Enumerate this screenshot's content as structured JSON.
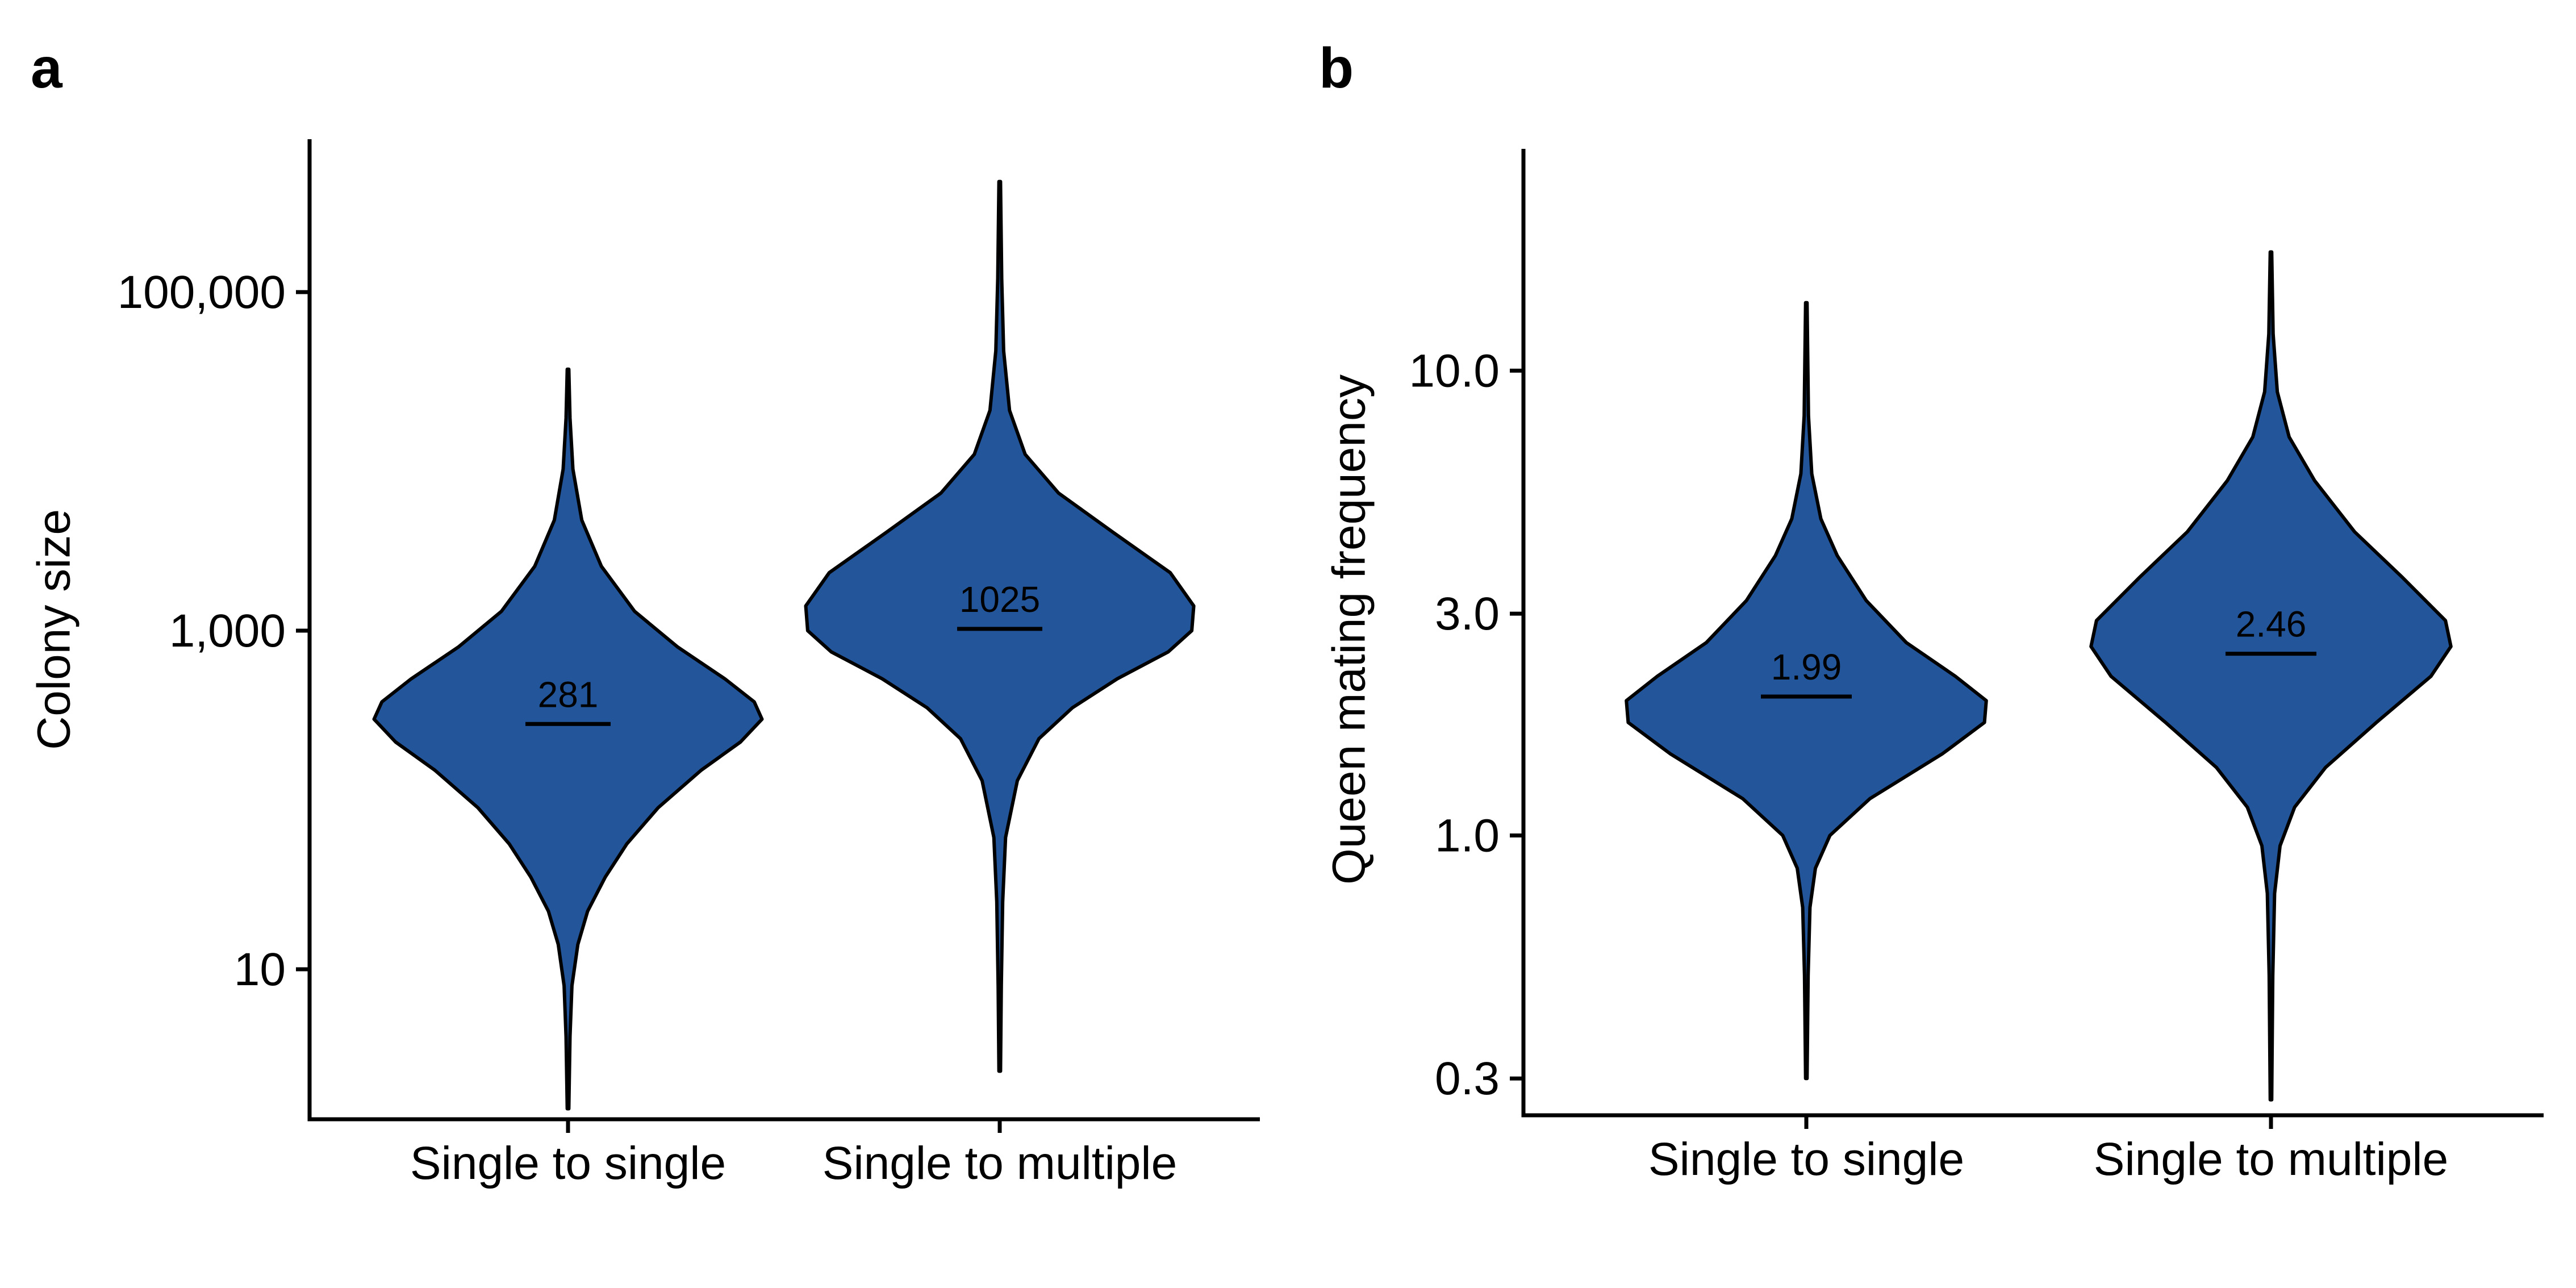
{
  "colors": {
    "violin_fill": "#225599",
    "outline": "#000000",
    "axis": "#000000"
  },
  "panels": [
    {
      "letter": "a"
    },
    {
      "letter": "b"
    }
  ],
  "chart_data": [
    {
      "type": "violin",
      "panel": "a",
      "title": "",
      "xlabel": "",
      "ylabel": "Colony size",
      "y_scale": "log10",
      "ylim": [
        1.3,
        800000
      ],
      "y_ticks": [
        10,
        1000,
        100000
      ],
      "y_tick_labels": [
        "10",
        "1,000",
        "100,000"
      ],
      "categories": [
        "Single to single",
        "Single to multiple"
      ],
      "medians": [
        281,
        1025
      ],
      "median_labels": [
        "281",
        "1025"
      ],
      "ranges": [
        [
          1.5,
          35000
        ],
        [
          2.5,
          450000
        ]
      ],
      "densities": [
        [
          [
            1.5,
            0.004
          ],
          [
            4,
            0.01
          ],
          [
            8,
            0.02
          ],
          [
            14,
            0.05
          ],
          [
            22,
            0.1
          ],
          [
            35,
            0.19
          ],
          [
            55,
            0.3
          ],
          [
            90,
            0.46
          ],
          [
            150,
            0.68
          ],
          [
            220,
            0.88
          ],
          [
            300,
            0.99
          ],
          [
            380,
            0.95
          ],
          [
            520,
            0.8
          ],
          [
            800,
            0.56
          ],
          [
            1300,
            0.34
          ],
          [
            2400,
            0.17
          ],
          [
            4500,
            0.07
          ],
          [
            9000,
            0.025
          ],
          [
            18000,
            0.01
          ],
          [
            35000,
            0.004
          ]
        ],
        [
          [
            2.5,
            0.004
          ],
          [
            8,
            0.008
          ],
          [
            25,
            0.015
          ],
          [
            60,
            0.03
          ],
          [
            130,
            0.09
          ],
          [
            230,
            0.2
          ],
          [
            350,
            0.37
          ],
          [
            520,
            0.6
          ],
          [
            750,
            0.86
          ],
          [
            1000,
            0.98
          ],
          [
            1400,
            0.99
          ],
          [
            2200,
            0.87
          ],
          [
            3800,
            0.58
          ],
          [
            6500,
            0.3
          ],
          [
            11000,
            0.13
          ],
          [
            20000,
            0.05
          ],
          [
            45000,
            0.02
          ],
          [
            120000,
            0.01
          ],
          [
            450000,
            0.004
          ]
        ]
      ]
    },
    {
      "type": "violin",
      "panel": "b",
      "title": "",
      "xlabel": "",
      "ylabel": "Queen mating frequency",
      "y_scale": "log10",
      "ylim": [
        0.25,
        30
      ],
      "y_ticks": [
        0.3,
        1.0,
        3.0,
        10.0
      ],
      "y_tick_labels": [
        "0.3",
        "1.0",
        "3.0",
        "10.0"
      ],
      "categories": [
        "Single to single",
        "Single to multiple"
      ],
      "medians": [
        1.99,
        2.46
      ],
      "median_labels": [
        "1.99",
        "2.46"
      ],
      "ranges": [
        [
          0.3,
          14
        ],
        [
          0.27,
          18
        ]
      ],
      "densities": [
        [
          [
            0.3,
            0.004
          ],
          [
            0.5,
            0.01
          ],
          [
            0.7,
            0.02
          ],
          [
            0.85,
            0.05
          ],
          [
            1.0,
            0.13
          ],
          [
            1.2,
            0.35
          ],
          [
            1.5,
            0.75
          ],
          [
            1.75,
            0.98
          ],
          [
            1.95,
            0.99
          ],
          [
            2.2,
            0.82
          ],
          [
            2.6,
            0.55
          ],
          [
            3.2,
            0.33
          ],
          [
            4.0,
            0.17
          ],
          [
            4.8,
            0.08
          ],
          [
            6.0,
            0.03
          ],
          [
            8.0,
            0.012
          ],
          [
            14,
            0.004
          ]
        ],
        [
          [
            0.27,
            0.004
          ],
          [
            0.5,
            0.01
          ],
          [
            0.75,
            0.02
          ],
          [
            0.95,
            0.05
          ],
          [
            1.15,
            0.13
          ],
          [
            1.4,
            0.3
          ],
          [
            1.75,
            0.58
          ],
          [
            2.2,
            0.88
          ],
          [
            2.55,
            0.99
          ],
          [
            2.9,
            0.96
          ],
          [
            3.6,
            0.72
          ],
          [
            4.5,
            0.46
          ],
          [
            5.8,
            0.24
          ],
          [
            7.2,
            0.1
          ],
          [
            9.0,
            0.035
          ],
          [
            12,
            0.012
          ],
          [
            18,
            0.004
          ]
        ]
      ]
    }
  ]
}
